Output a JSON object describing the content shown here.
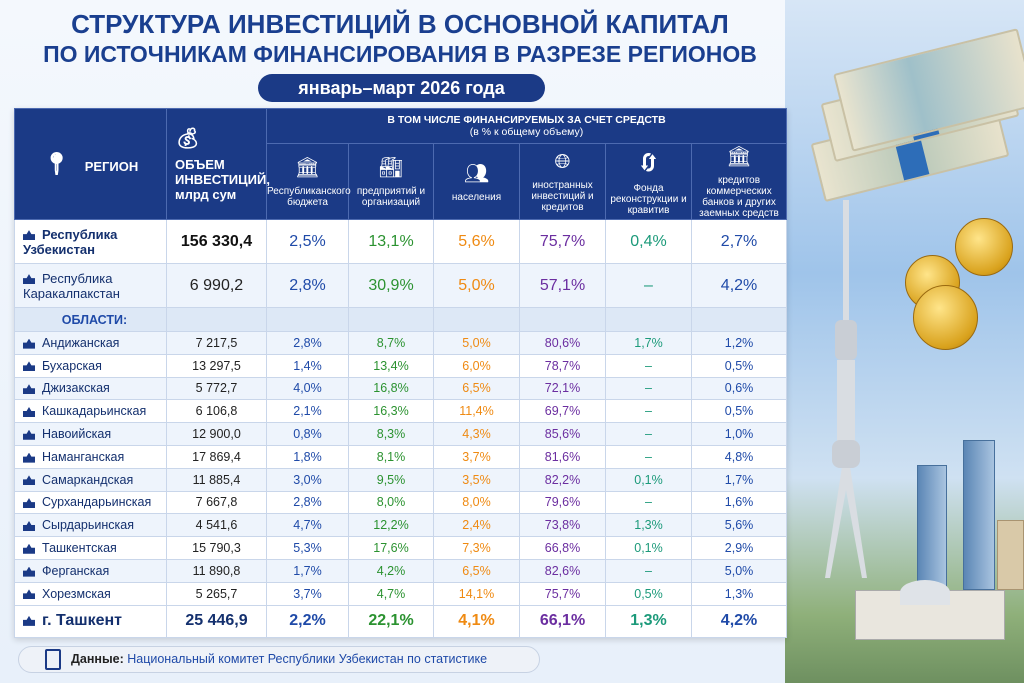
{
  "title_line1": "СТРУКТУРА ИНВЕСТИЦИЙ В ОСНОВНОЙ КАПИТАЛ",
  "title_line2": "ПО ИСТОЧНИКАМ ФИНАНСИРОВАНИЯ  В РАЗРЕЗЕ РЕГИОНОВ",
  "period": "январь–март 2026 года",
  "header": {
    "region": "РЕГИОН",
    "volume": "ОБЪЕМ ИНВЕСТИЦИЙ, млрд сум",
    "group": "В ТОМ ЧИСЛЕ ФИНАНСИРУЕМЫХ ЗА СЧЕТ СРЕДСТВ",
    "group_sub": "(в % к общему объему)",
    "columns": [
      "Республиканского бюджета",
      "предприятий и организаций",
      "населения",
      "иностранных инвестиций и кредитов",
      "Фонда реконструкции и кравитив",
      "кредитов коммерческих банков и других заемных средств"
    ]
  },
  "oblast_label": "ОБЛАСТИ:",
  "rows": [
    {
      "name": "Республика Узбекистан",
      "volume": "156 330,4",
      "v": [
        "2,5%",
        "13,1%",
        "5,6%",
        "75,7%",
        "0,4%",
        "2,7%"
      ]
    },
    {
      "name": "Республика Каракалпакстан",
      "volume": "6 990,2",
      "v": [
        "2,8%",
        "30,9%",
        "5,0%",
        "57,1%",
        "–",
        "4,2%"
      ]
    },
    {
      "name": "Андижанская",
      "volume": "7 217,5",
      "v": [
        "2,8%",
        "8,7%",
        "5,0%",
        "80,6%",
        "1,7%",
        "1,2%"
      ]
    },
    {
      "name": "Бухарская",
      "volume": "13 297,5",
      "v": [
        "1,4%",
        "13,4%",
        "6,0%",
        "78,7%",
        "–",
        "0,5%"
      ]
    },
    {
      "name": "Джизакская",
      "volume": "5 772,7",
      "v": [
        "4,0%",
        "16,8%",
        "6,5%",
        "72,1%",
        "–",
        "0,6%"
      ]
    },
    {
      "name": "Кашкадарьинская",
      "volume": "6 106,8",
      "v": [
        "2,1%",
        "16,3%",
        "11,4%",
        "69,7%",
        "–",
        "0,5%"
      ]
    },
    {
      "name": "Навоийская",
      "volume": "12 900,0",
      "v": [
        "0,8%",
        "8,3%",
        "4,3%",
        "85,6%",
        "–",
        "1,0%"
      ]
    },
    {
      "name": "Наманганская",
      "volume": "17 869,4",
      "v": [
        "1,8%",
        "8,1%",
        "3,7%",
        "81,6%",
        "–",
        "4,8%"
      ]
    },
    {
      "name": "Самаркандская",
      "volume": "11 885,4",
      "v": [
        "3,0%",
        "9,5%",
        "3,5%",
        "82,2%",
        "0,1%",
        "1,7%"
      ]
    },
    {
      "name": "Сурхандарьинская",
      "volume": "7 667,8",
      "v": [
        "2,8%",
        "8,0%",
        "8,0%",
        "79,6%",
        "–",
        "1,6%"
      ]
    },
    {
      "name": "Сырдарьинская",
      "volume": "4 541,6",
      "v": [
        "4,7%",
        "12,2%",
        "2,4%",
        "73,8%",
        "1,3%",
        "5,6%"
      ]
    },
    {
      "name": "Ташкентская",
      "volume": "15 790,3",
      "v": [
        "5,3%",
        "17,6%",
        "7,3%",
        "66,8%",
        "0,1%",
        "2,9%"
      ]
    },
    {
      "name": "Ферганская",
      "volume": "11 890,8",
      "v": [
        "1,7%",
        "4,2%",
        "6,5%",
        "82,6%",
        "–",
        "5,0%"
      ]
    },
    {
      "name": "Хорезмская",
      "volume": "5 265,7",
      "v": [
        "3,7%",
        "4,7%",
        "14,1%",
        "75,7%",
        "0,5%",
        "1,3%"
      ]
    },
    {
      "name": "г. Ташкент",
      "volume": "25 446,9",
      "v": [
        "2,2%",
        "22,1%",
        "4,1%",
        "66,1%",
        "1,3%",
        "4,2%"
      ]
    }
  ],
  "source_label": "Данные:",
  "source_text": "Национальный комитет Республики Узбекистан по статистике"
}
